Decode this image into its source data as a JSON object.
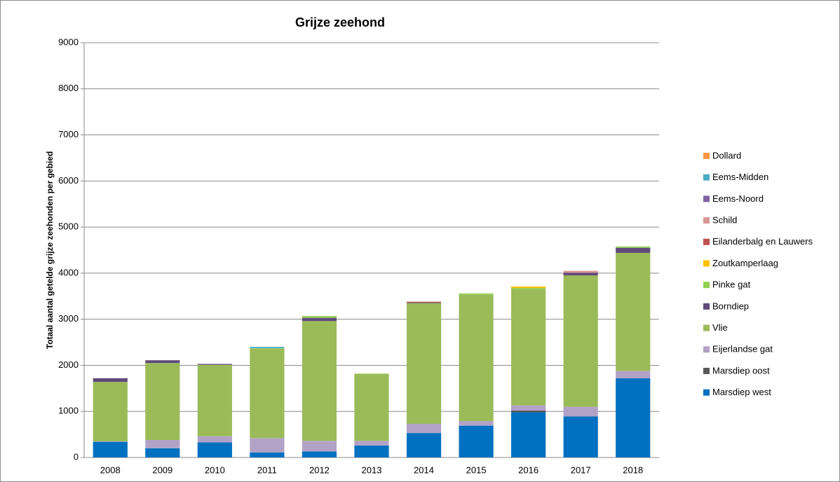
{
  "chart_data": {
    "type": "stacked-bar",
    "title": "Grijze zeehond",
    "y_label": "Totaal aantal getelde grijze zeehonden per gebied",
    "categories": [
      "2008",
      "2009",
      "2010",
      "2011",
      "2012",
      "2013",
      "2014",
      "2015",
      "2016",
      "2017",
      "2018"
    ],
    "ylim": [
      0,
      9000
    ],
    "yticks": [
      0,
      1000,
      2000,
      3000,
      4000,
      5000,
      6000,
      7000,
      8000,
      9000
    ],
    "grid": true,
    "series": [
      {
        "name": "Marsdiep west",
        "color": "#0070c0",
        "values": [
          340,
          200,
          330,
          110,
          130,
          260,
          530,
          690,
          980,
          890,
          1720
        ]
      },
      {
        "name": "Marsdiep oost",
        "color": "#595959",
        "values": [
          0,
          0,
          0,
          0,
          0,
          0,
          0,
          0,
          40,
          0,
          0
        ]
      },
      {
        "name": "Eijerlandse gat",
        "color": "#b3a2c7",
        "values": [
          10,
          180,
          130,
          310,
          230,
          100,
          200,
          100,
          110,
          210,
          160
        ]
      },
      {
        "name": "Vlie",
        "color": "#9bbb59",
        "values": [
          1290,
          1670,
          1550,
          1940,
          2600,
          1450,
          2620,
          2740,
          2530,
          2850,
          2560
        ]
      },
      {
        "name": "Borndiep",
        "color": "#604a7b",
        "values": [
          80,
          60,
          20,
          0,
          70,
          0,
          10,
          0,
          0,
          60,
          110
        ]
      },
      {
        "name": "Pinke gat",
        "color": "#92d050",
        "values": [
          0,
          0,
          0,
          10,
          40,
          10,
          0,
          30,
          20,
          0,
          30
        ]
      },
      {
        "name": "Zoutkamperlaag",
        "color": "#ffc000",
        "values": [
          0,
          0,
          0,
          0,
          0,
          0,
          0,
          0,
          30,
          0,
          0
        ]
      },
      {
        "name": "Eilanderbalg en Lauwers",
        "color": "#c0504d",
        "values": [
          0,
          0,
          0,
          0,
          0,
          0,
          20,
          0,
          0,
          0,
          0
        ]
      },
      {
        "name": "Schild",
        "color": "#d99694",
        "values": [
          0,
          0,
          0,
          0,
          0,
          0,
          0,
          0,
          0,
          40,
          0
        ]
      },
      {
        "name": "Eems-Noord",
        "color": "#8064a2",
        "values": [
          0,
          0,
          0,
          0,
          0,
          0,
          0,
          0,
          0,
          0,
          0
        ]
      },
      {
        "name": "Eems-Midden",
        "color": "#4bacc6",
        "values": [
          0,
          0,
          0,
          30,
          0,
          0,
          0,
          0,
          0,
          0,
          0
        ]
      },
      {
        "name": "Dollard",
        "color": "#f79646",
        "values": [
          0,
          0,
          0,
          0,
          0,
          0,
          0,
          0,
          0,
          0,
          0
        ]
      }
    ]
  }
}
